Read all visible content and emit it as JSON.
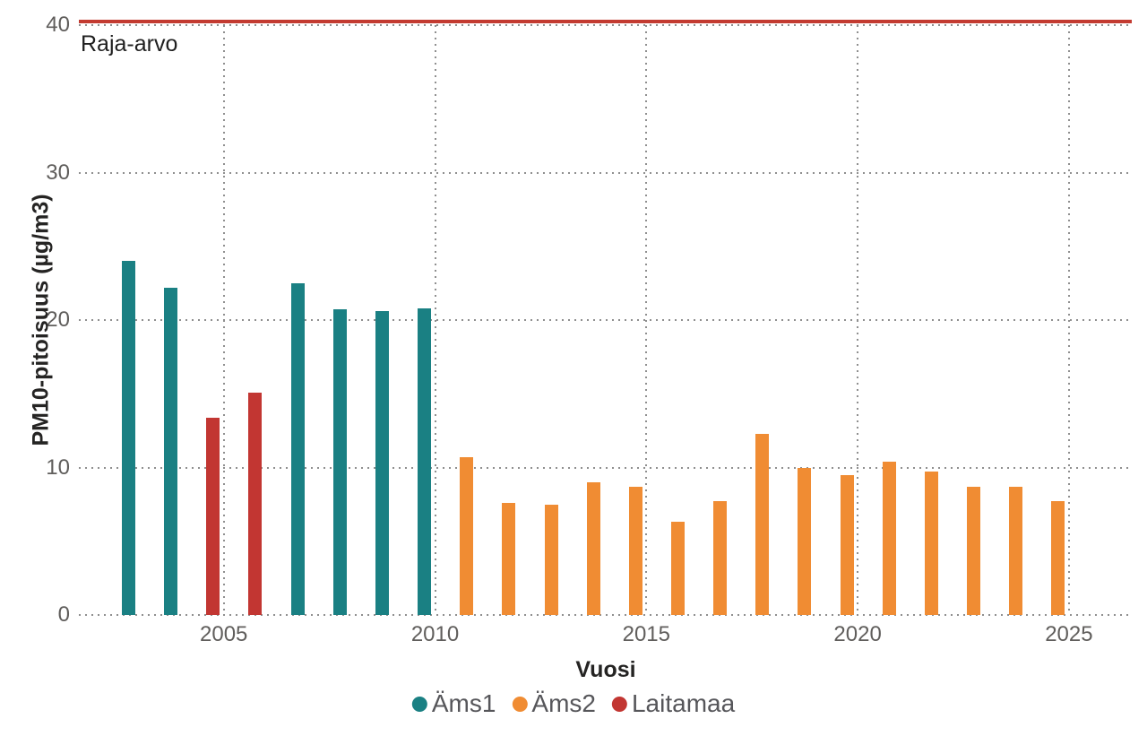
{
  "chart_data": {
    "type": "bar",
    "title": "",
    "xlabel": "Vuosi",
    "ylabel": "PM10-pitoisuus (µg/m3)",
    "x_ticks": [
      2005,
      2010,
      2015,
      2020,
      2025
    ],
    "y_ticks": [
      0,
      10,
      20,
      30,
      40
    ],
    "ylim": [
      0,
      40
    ],
    "xlim_years": [
      2002,
      2027
    ],
    "grid": "dotted",
    "legend_position": "bottom",
    "reference_line": {
      "value": 40,
      "label": "Raja-arvo",
      "color": "#c33b31"
    },
    "series": [
      {
        "name": "Äms1",
        "color": "#1a8083",
        "points": [
          {
            "year": 2003,
            "value": 24.0
          },
          {
            "year": 2004,
            "value": 22.2
          },
          {
            "year": 2007,
            "value": 22.5
          },
          {
            "year": 2008,
            "value": 20.7
          },
          {
            "year": 2009,
            "value": 20.6
          },
          {
            "year": 2010,
            "value": 20.8
          }
        ]
      },
      {
        "name": "Äms2",
        "color": "#f08c33",
        "points": [
          {
            "year": 2011,
            "value": 10.7
          },
          {
            "year": 2012,
            "value": 7.6
          },
          {
            "year": 2013,
            "value": 7.5
          },
          {
            "year": 2014,
            "value": 9.0
          },
          {
            "year": 2015,
            "value": 8.7
          },
          {
            "year": 2016,
            "value": 6.3
          },
          {
            "year": 2017,
            "value": 7.7
          },
          {
            "year": 2018,
            "value": 12.3
          },
          {
            "year": 2019,
            "value": 10.0
          },
          {
            "year": 2020,
            "value": 9.5
          },
          {
            "year": 2021,
            "value": 10.4
          },
          {
            "year": 2022,
            "value": 9.7
          },
          {
            "year": 2023,
            "value": 8.7
          },
          {
            "year": 2024,
            "value": 8.7
          },
          {
            "year": 2025,
            "value": 7.7
          }
        ]
      },
      {
        "name": "Laitamaa",
        "color": "#c23632",
        "points": [
          {
            "year": 2005,
            "value": 13.4
          },
          {
            "year": 2006,
            "value": 15.1
          }
        ]
      }
    ]
  }
}
